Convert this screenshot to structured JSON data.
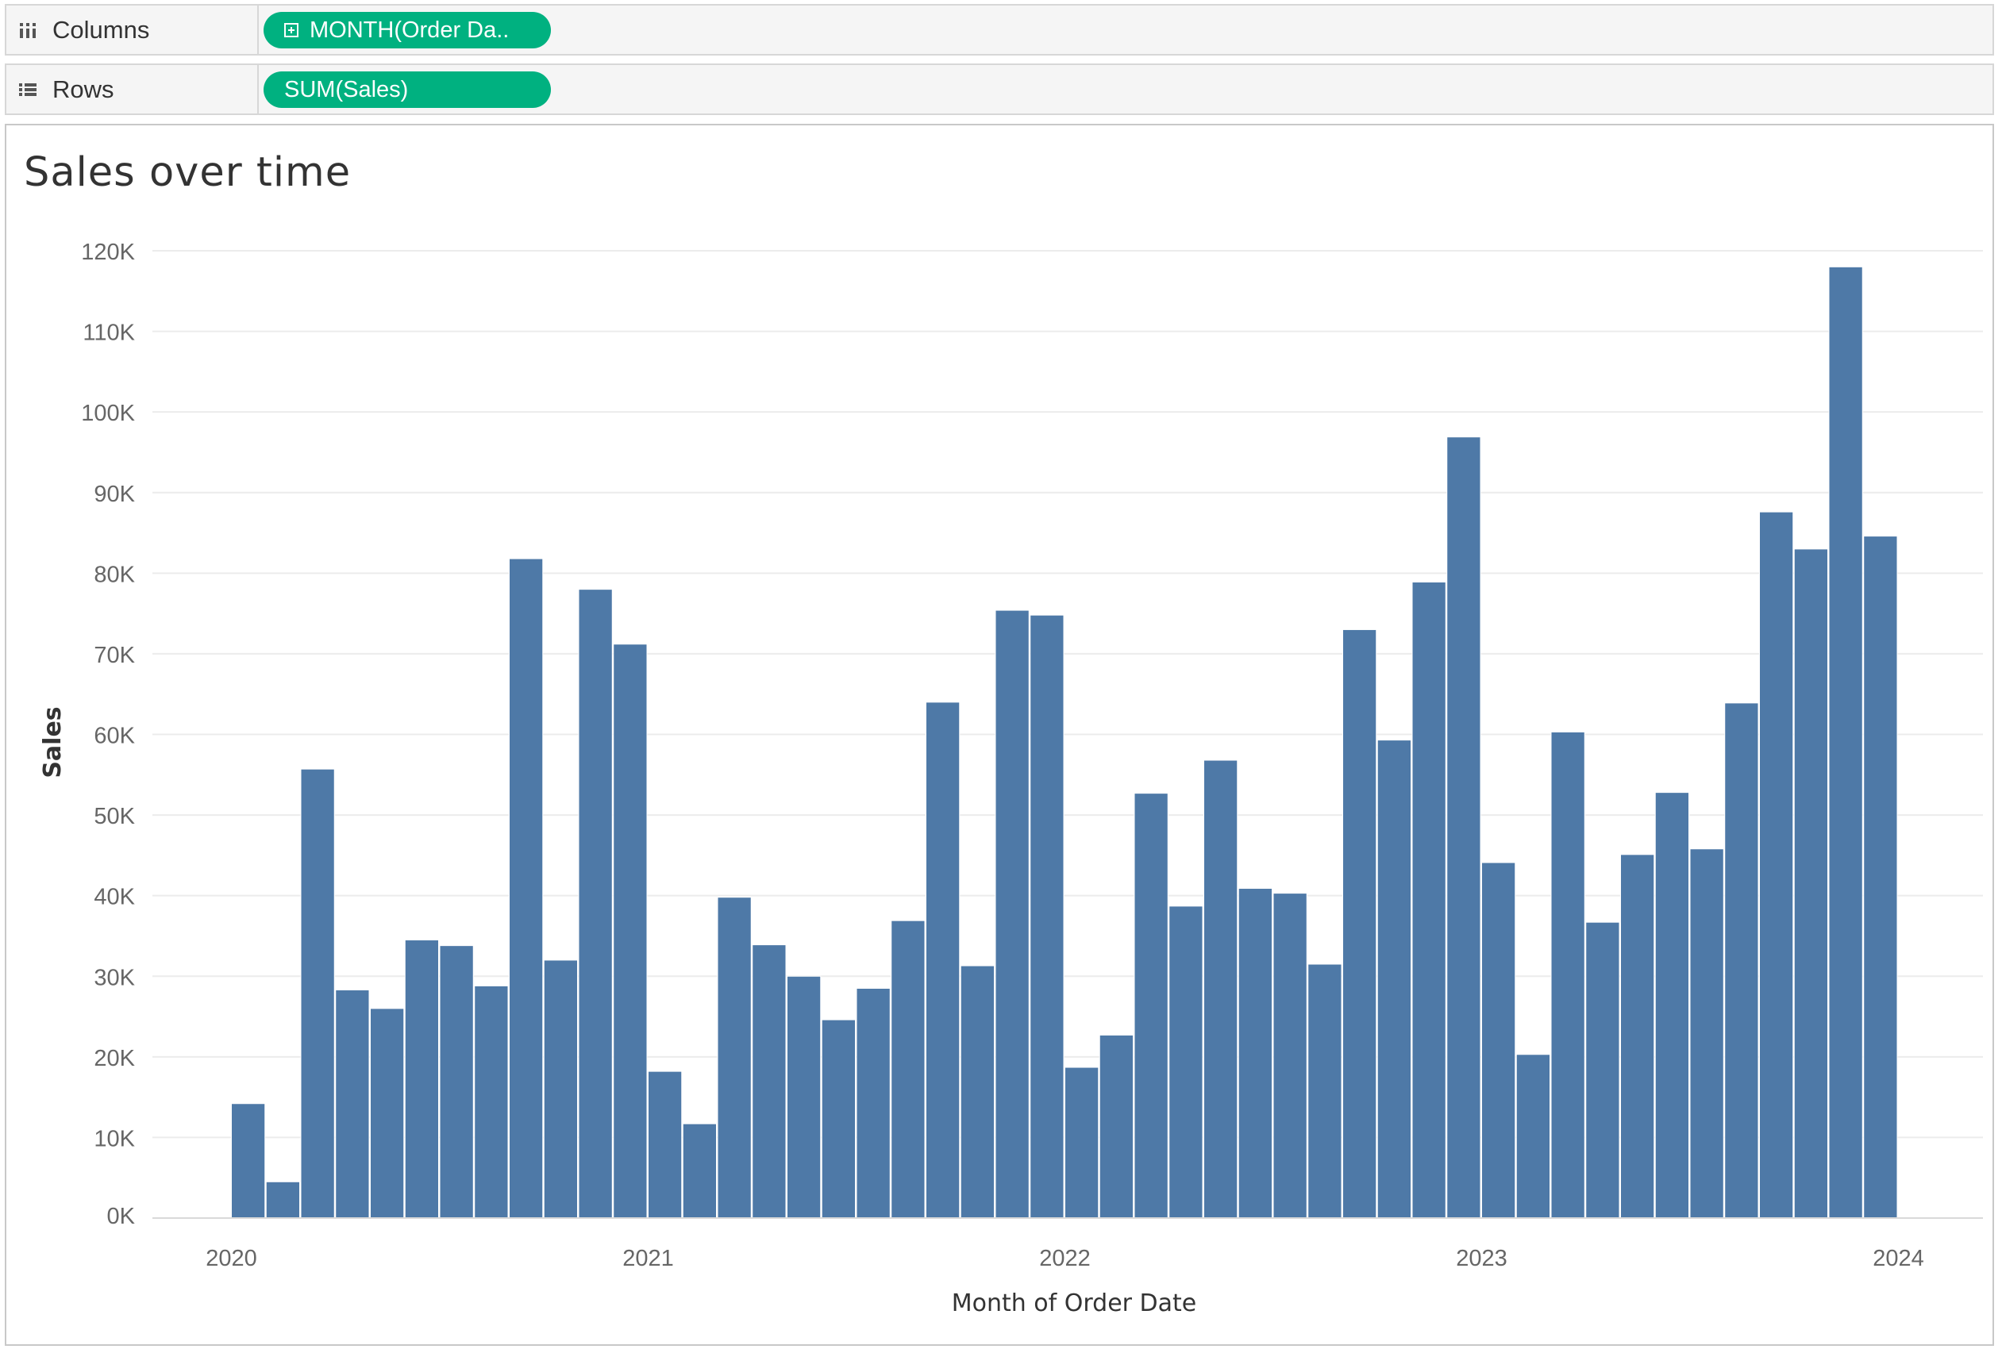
{
  "shelves": {
    "columns": {
      "label": "Columns",
      "pill": "MONTH(Order Da..",
      "icon": "columns-icon"
    },
    "rows": {
      "label": "Rows",
      "pill": "SUM(Sales)",
      "icon": "rows-icon"
    }
  },
  "colors": {
    "bar": "#4e79a7",
    "pill": "#00b180",
    "grid": "#ececec"
  },
  "chart_data": {
    "type": "bar",
    "title": "Sales over time",
    "xlabel": "Month of Order Date",
    "ylabel": "Sales",
    "ylim": [
      0,
      120000
    ],
    "grid": true,
    "y_ticks": [
      "0K",
      "10K",
      "20K",
      "30K",
      "40K",
      "50K",
      "60K",
      "70K",
      "80K",
      "90K",
      "100K",
      "110K",
      "120K"
    ],
    "x_ticks": [
      "2020",
      "2021",
      "2022",
      "2023",
      "2024"
    ],
    "categories": [
      "2020-01",
      "2020-02",
      "2020-03",
      "2020-04",
      "2020-05",
      "2020-06",
      "2020-07",
      "2020-08",
      "2020-09",
      "2020-10",
      "2020-11",
      "2020-12",
      "2021-01",
      "2021-02",
      "2021-03",
      "2021-04",
      "2021-05",
      "2021-06",
      "2021-07",
      "2021-08",
      "2021-09",
      "2021-10",
      "2021-11",
      "2021-12",
      "2022-01",
      "2022-02",
      "2022-03",
      "2022-04",
      "2022-05",
      "2022-06",
      "2022-07",
      "2022-08",
      "2022-09",
      "2022-10",
      "2022-11",
      "2022-12",
      "2023-01",
      "2023-02",
      "2023-03",
      "2023-04",
      "2023-05",
      "2023-06",
      "2023-07",
      "2023-08",
      "2023-09",
      "2023-10",
      "2023-11",
      "2023-12"
    ],
    "values": [
      14200,
      4500,
      55700,
      28300,
      26000,
      34500,
      33800,
      28800,
      81800,
      32000,
      78000,
      71200,
      18200,
      11700,
      39800,
      33900,
      30000,
      24600,
      28500,
      36900,
      64000,
      31300,
      75400,
      74800,
      18700,
      22700,
      52700,
      38700,
      56800,
      40900,
      40300,
      31500,
      73000,
      59300,
      78900,
      96900,
      44100,
      20300,
      60300,
      36700,
      45100,
      52800,
      45800,
      63900,
      87600,
      83000,
      118000,
      84600
    ]
  }
}
